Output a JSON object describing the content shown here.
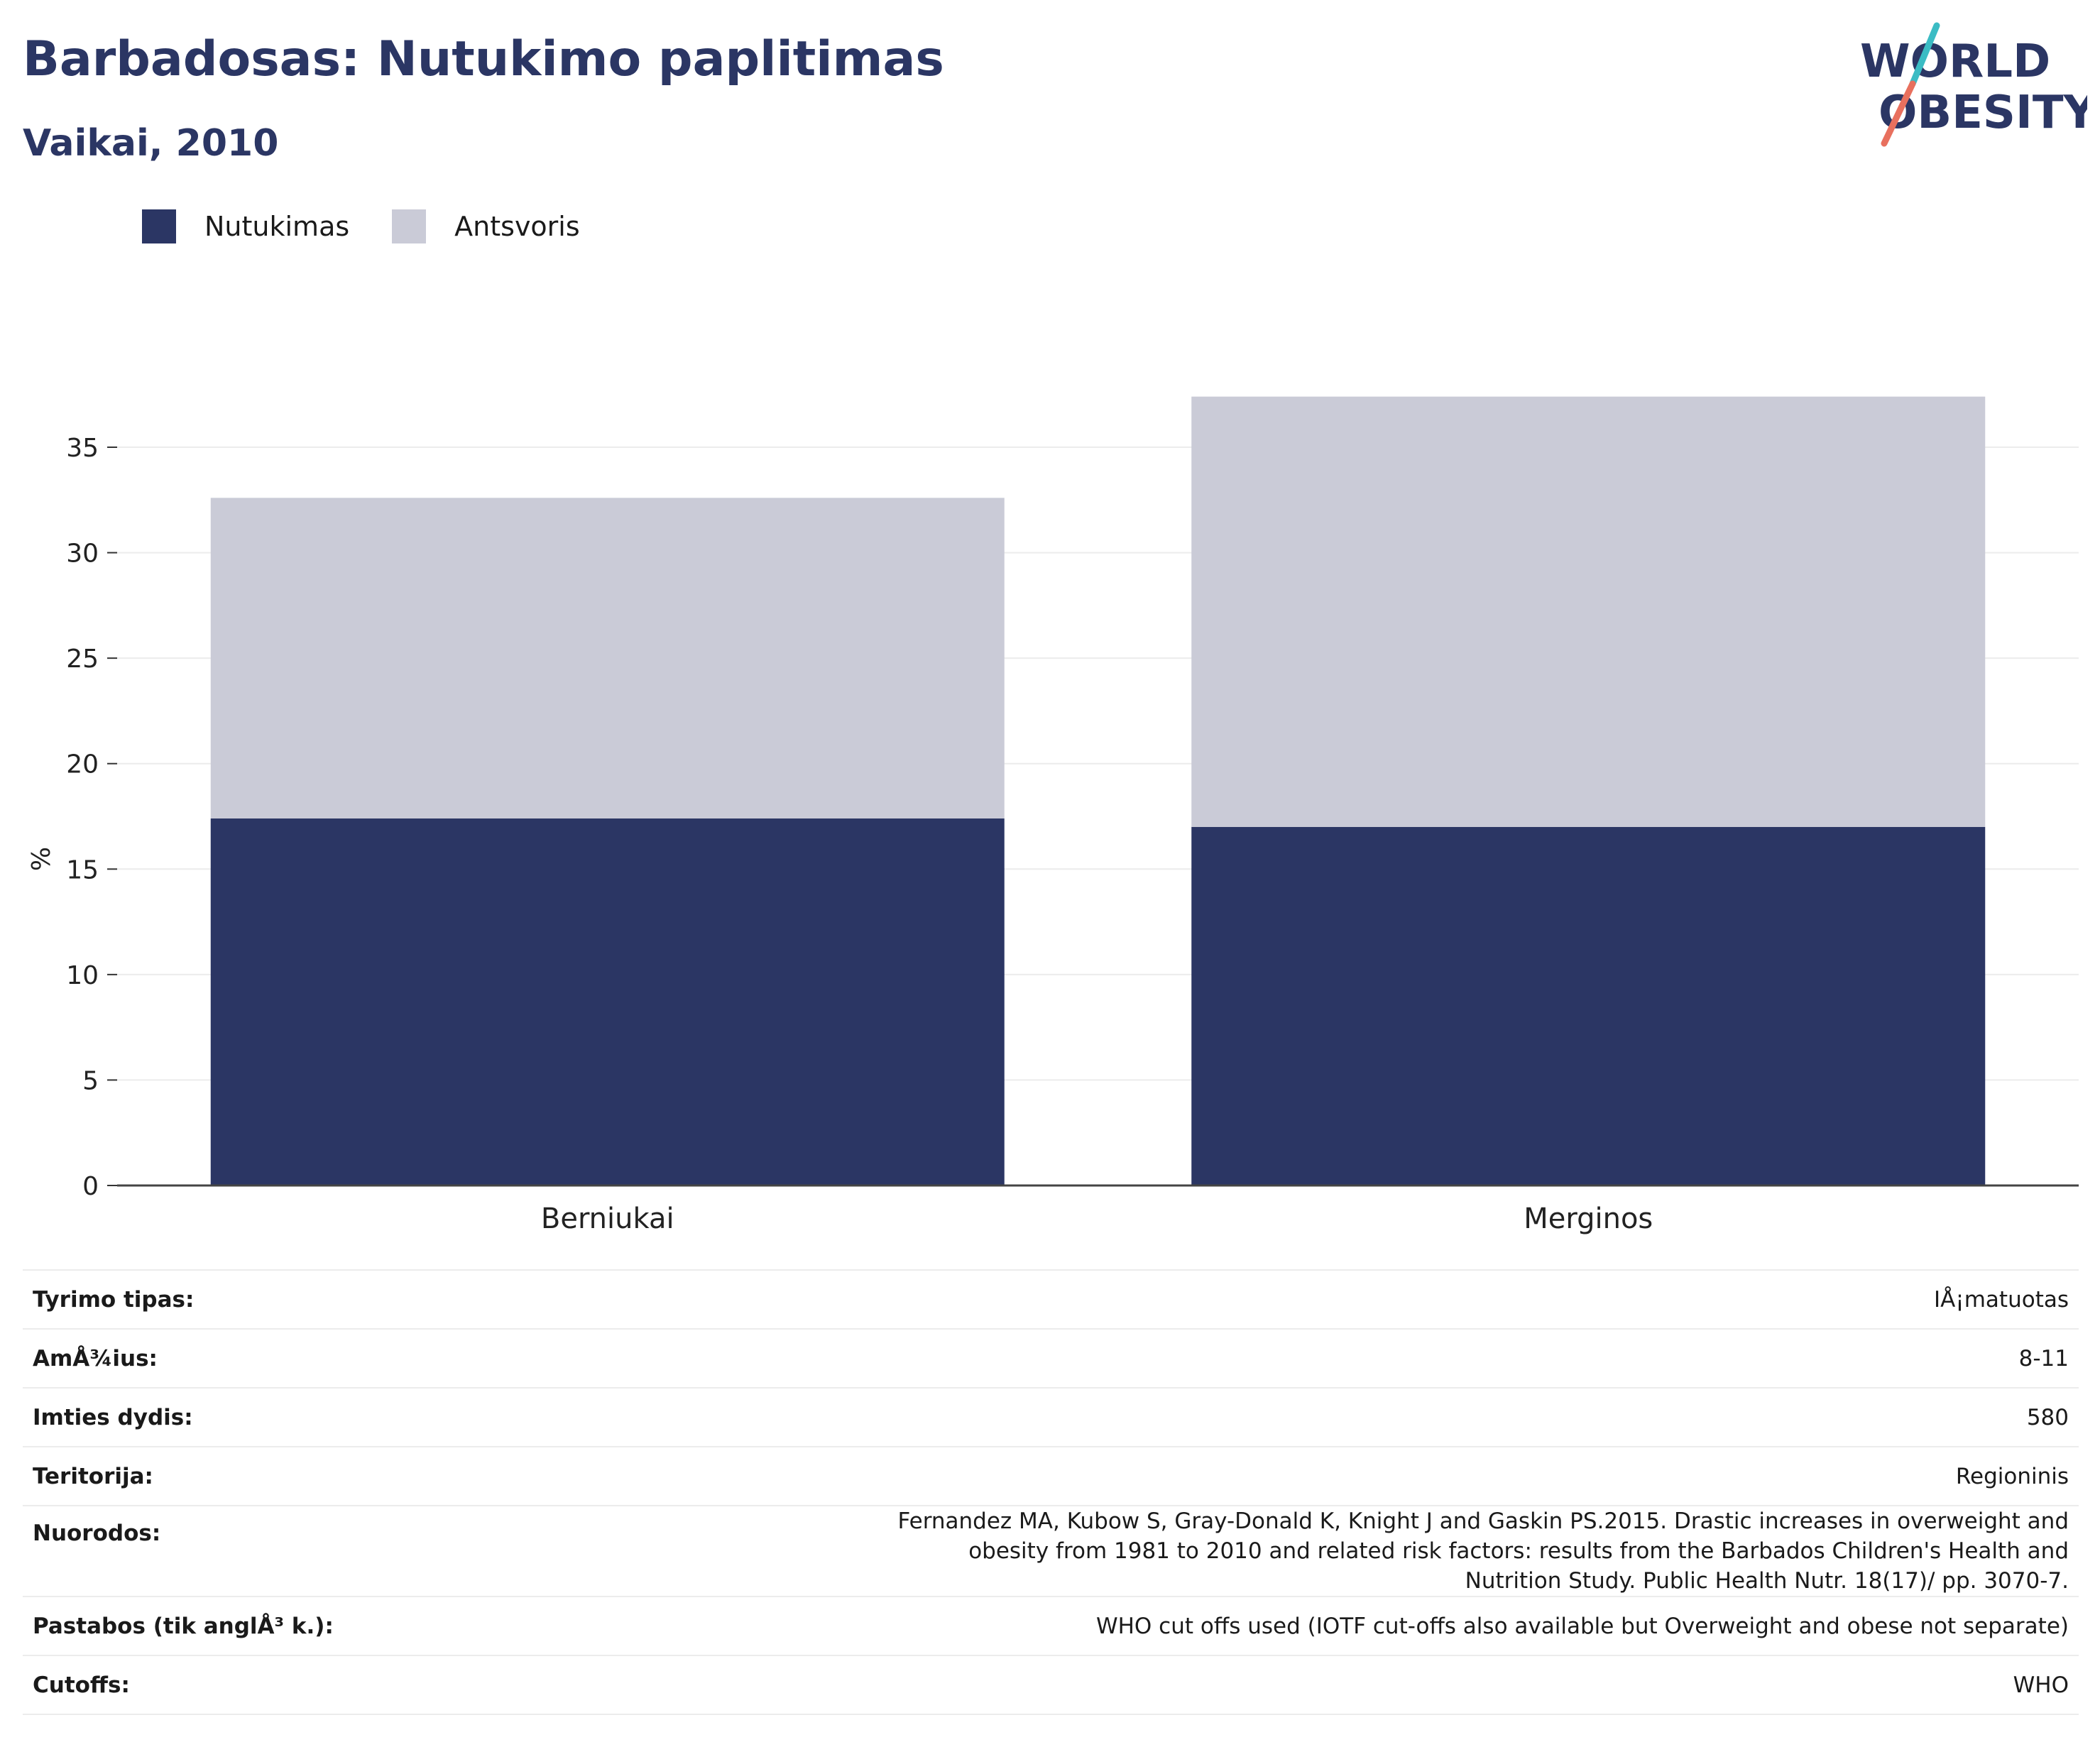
{
  "header": {
    "title": "Barbadosas: Nutukimo paplitimas",
    "subtitle": "Vaikai, 2010",
    "logo_line1": "WORLD",
    "logo_line2": "OBESITY"
  },
  "colors": {
    "title": "#2b3664",
    "obesity": "#2b3664",
    "overweight": "#cacbd7",
    "grid": "#ececec",
    "logo_teal": "#3bbcc4",
    "logo_coral": "#e8705e"
  },
  "chart_data": {
    "type": "bar",
    "stacked": true,
    "categories": [
      "Berniukai",
      "Merginos"
    ],
    "series": [
      {
        "name": "Nutukimas",
        "values": [
          17.4,
          17.0
        ]
      },
      {
        "name": "Antsvoris",
        "values": [
          15.2,
          20.4
        ]
      }
    ],
    "title": "Barbadosas: Nutukimo paplitimas",
    "subtitle": "Vaikai, 2010",
    "xlabel": "",
    "ylabel": "%",
    "ylim": [
      0,
      40
    ],
    "yticks": [
      0,
      5,
      10,
      15,
      20,
      25,
      30,
      35
    ],
    "grid": true,
    "legend": "top-left"
  },
  "details": [
    {
      "label": "Tyrimo tipas:",
      "value": "IÅ¡matuotas"
    },
    {
      "label": "AmÅ¾ius:",
      "value": "8-11"
    },
    {
      "label": "Imties dydis:",
      "value": "580"
    },
    {
      "label": "Teritorija:",
      "value": "Regioninis"
    },
    {
      "label": "Nuorodos:",
      "value": "Fernandez MA, Kubow S, Gray-Donald K, Knight J and Gaskin PS.2015. Drastic increases in overweight and obesity from 1981 to 2010 and related risk factors: results from the Barbados Children's Health and Nutrition Study. Public Health Nutr. 18(17)/ pp. 3070-7."
    },
    {
      "label": "Pastabos (tik anglÅ³ k.):",
      "value": "WHO cut offs used (IOTF cut-offs also available but Overweight and obese not separate)"
    },
    {
      "label": "Cutoffs:",
      "value": "WHO"
    }
  ]
}
